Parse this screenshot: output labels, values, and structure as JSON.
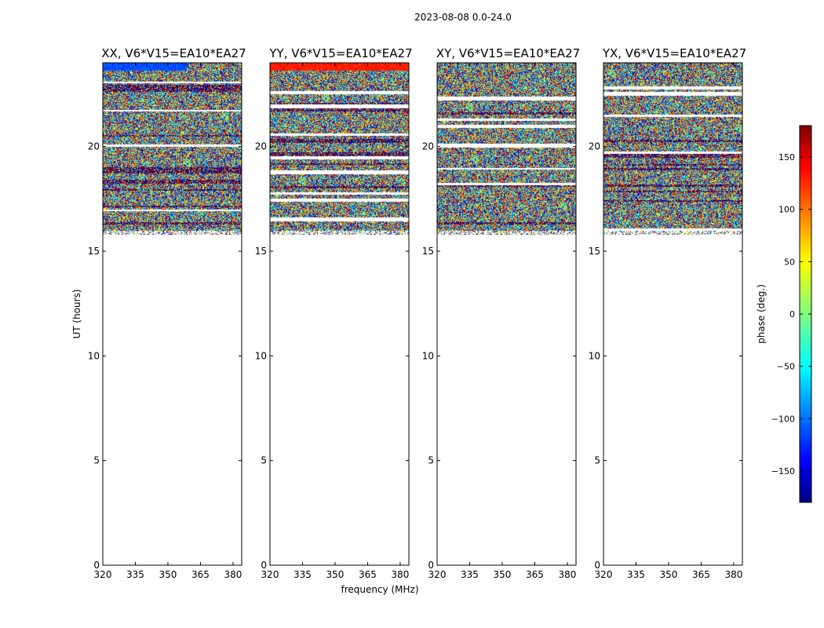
{
  "figure_title": "2023-08-08 0.0-24.0",
  "chart_data": {
    "type": "heatmap",
    "title": "2023-08-08 0.0-24.0",
    "xlabel": "frequency (MHz)",
    "ylabel": "UT (hours)",
    "xlim": [
      320,
      384
    ],
    "ylim": [
      0,
      24
    ],
    "xticks": [
      320,
      335,
      350,
      365,
      380
    ],
    "yticks": [
      0,
      5,
      10,
      15,
      20
    ],
    "data_present_ut_range": [
      15.8,
      24
    ],
    "panels": [
      {
        "name": "XX",
        "title": "XX, V6*V15=EA10*EA27"
      },
      {
        "name": "YY",
        "title": "YY, V6*V15=EA10*EA27"
      },
      {
        "name": "XY",
        "title": "XY, V6*V15=EA10*EA27"
      },
      {
        "name": "YX",
        "title": "YX, V6*V15=EA10*EA27"
      }
    ],
    "colorbar": {
      "label": "phase (deg.)",
      "range": [
        -180,
        180
      ],
      "ticks": [
        150,
        100,
        50,
        0,
        -50,
        -100,
        -150
      ],
      "colormap": "jet"
    }
  }
}
